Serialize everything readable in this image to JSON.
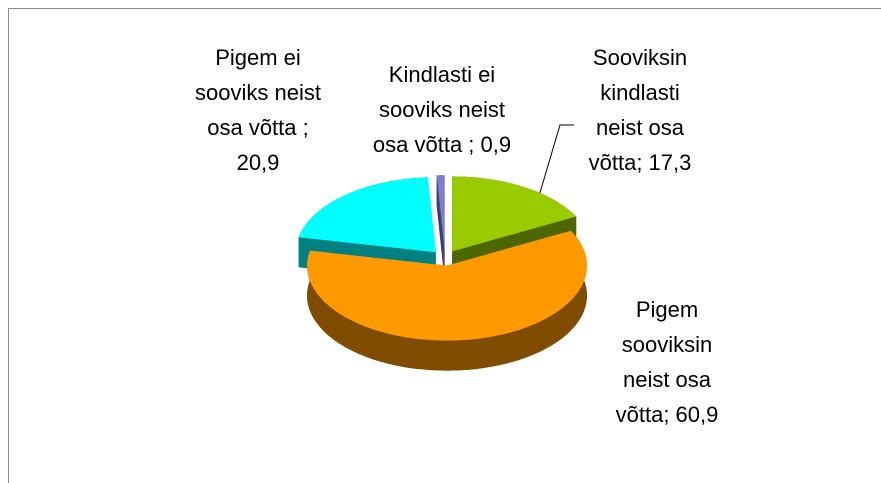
{
  "chart_data": {
    "type": "pie",
    "labels": [
      "Sooviksin\nkindlasti\nneist osa\nvõtta; 17,3",
      "Pigem\nsooviksin\nneist osa\nvõtta; 60,9",
      "Pigem ei\nsooviks neist\nosa võtta ;\n20,9",
      "Kindlasti ei\nsooviks neist\nosa võtta ; 0,9"
    ],
    "values": [
      17.3,
      60.9,
      20.9,
      0.9
    ],
    "colors": [
      "#99cc00",
      "#ff9900",
      "#00ffff",
      "#7f7fd0"
    ],
    "side_colors": [
      "#4d6600",
      "#7f4c00",
      "#008080",
      "#3f3f70"
    ]
  }
}
